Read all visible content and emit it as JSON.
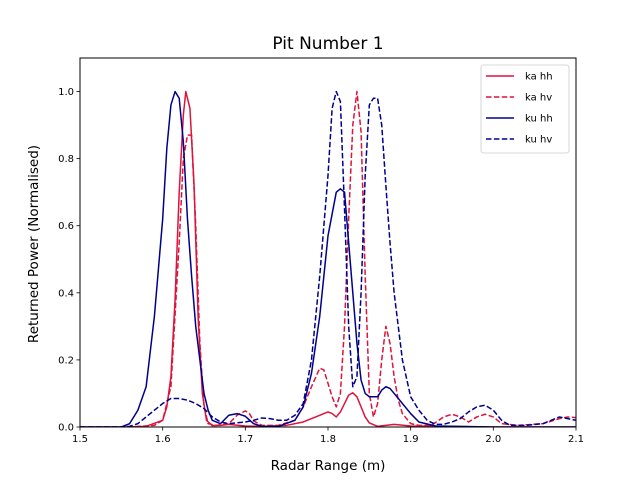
{
  "chart_data": {
    "type": "line",
    "title": "Pit Number 1",
    "xlabel": "Radar Range (m)",
    "ylabel": "Returned Power (Normalised)",
    "xlim": [
      1.5,
      2.1
    ],
    "ylim": [
      0.0,
      1.1
    ],
    "xticks": [
      1.5,
      1.6,
      1.7,
      1.8,
      1.9,
      2.0,
      2.1
    ],
    "xtick_labels": [
      "1.5",
      "1.6",
      "1.7",
      "1.8",
      "1.9",
      "2.0",
      "2.1"
    ],
    "yticks": [
      0.0,
      0.2,
      0.4,
      0.6,
      0.8,
      1.0
    ],
    "ytick_labels": [
      "0.0",
      "0.2",
      "0.4",
      "0.6",
      "0.8",
      "1.0"
    ],
    "legend_position": "top-right",
    "series": [
      {
        "name": "ka hh",
        "color": "#dc143c",
        "dash": "solid",
        "points": [
          [
            1.5,
            0
          ],
          [
            1.55,
            0
          ],
          [
            1.58,
            0.002
          ],
          [
            1.6,
            0.02
          ],
          [
            1.605,
            0.06
          ],
          [
            1.61,
            0.15
          ],
          [
            1.615,
            0.38
          ],
          [
            1.62,
            0.7
          ],
          [
            1.625,
            0.93
          ],
          [
            1.628,
            1.0
          ],
          [
            1.633,
            0.95
          ],
          [
            1.638,
            0.72
          ],
          [
            1.643,
            0.32
          ],
          [
            1.648,
            0.1
          ],
          [
            1.653,
            0.02
          ],
          [
            1.66,
            0.004
          ],
          [
            1.67,
            0.005
          ],
          [
            1.68,
            0.008
          ],
          [
            1.7,
            0.003
          ],
          [
            1.72,
            0.002
          ],
          [
            1.75,
            0.005
          ],
          [
            1.77,
            0.015
          ],
          [
            1.79,
            0.035
          ],
          [
            1.8,
            0.045
          ],
          [
            1.805,
            0.04
          ],
          [
            1.81,
            0.03
          ],
          [
            1.815,
            0.045
          ],
          [
            1.82,
            0.07
          ],
          [
            1.825,
            0.095
          ],
          [
            1.83,
            0.102
          ],
          [
            1.835,
            0.09
          ],
          [
            1.84,
            0.06
          ],
          [
            1.845,
            0.03
          ],
          [
            1.85,
            0.012
          ],
          [
            1.86,
            0.002
          ],
          [
            1.87,
            0.005
          ],
          [
            1.88,
            0.008
          ],
          [
            1.9,
            0.003
          ],
          [
            2.0,
            0.0
          ],
          [
            2.1,
            0.0
          ]
        ]
      },
      {
        "name": "ka hv",
        "color": "#dc143c",
        "dash": "dashed",
        "points": [
          [
            1.5,
            0
          ],
          [
            1.56,
            0
          ],
          [
            1.59,
            0.005
          ],
          [
            1.6,
            0.02
          ],
          [
            1.61,
            0.12
          ],
          [
            1.62,
            0.55
          ],
          [
            1.625,
            0.8
          ],
          [
            1.63,
            0.87
          ],
          [
            1.635,
            0.87
          ],
          [
            1.64,
            0.6
          ],
          [
            1.645,
            0.25
          ],
          [
            1.65,
            0.06
          ],
          [
            1.655,
            0.01
          ],
          [
            1.665,
            0.005
          ],
          [
            1.68,
            0.01
          ],
          [
            1.69,
            0.035
          ],
          [
            1.7,
            0.048
          ],
          [
            1.705,
            0.04
          ],
          [
            1.71,
            0.018
          ],
          [
            1.72,
            0.005
          ],
          [
            1.74,
            0.005
          ],
          [
            1.76,
            0.02
          ],
          [
            1.77,
            0.06
          ],
          [
            1.78,
            0.12
          ],
          [
            1.79,
            0.175
          ],
          [
            1.795,
            0.17
          ],
          [
            1.8,
            0.13
          ],
          [
            1.805,
            0.09
          ],
          [
            1.81,
            0.06
          ],
          [
            1.815,
            0.1
          ],
          [
            1.82,
            0.3
          ],
          [
            1.825,
            0.62
          ],
          [
            1.83,
            0.9
          ],
          [
            1.835,
            1.0
          ],
          [
            1.84,
            0.88
          ],
          [
            1.845,
            0.45
          ],
          [
            1.85,
            0.1
          ],
          [
            1.855,
            0.03
          ],
          [
            1.86,
            0.07
          ],
          [
            1.865,
            0.2
          ],
          [
            1.87,
            0.3
          ],
          [
            1.875,
            0.25
          ],
          [
            1.88,
            0.15
          ],
          [
            1.885,
            0.08
          ],
          [
            1.89,
            0.04
          ],
          [
            1.9,
            0.01
          ],
          [
            1.91,
            0.005
          ],
          [
            1.925,
            0.005
          ],
          [
            1.94,
            0.03
          ],
          [
            1.95,
            0.038
          ],
          [
            1.96,
            0.03
          ],
          [
            1.97,
            0.015
          ],
          [
            1.98,
            0.03
          ],
          [
            1.99,
            0.038
          ],
          [
            2.0,
            0.03
          ],
          [
            2.01,
            0.01
          ],
          [
            2.03,
            0.005
          ],
          [
            2.06,
            0.01
          ],
          [
            2.08,
            0.025
          ],
          [
            2.09,
            0.03
          ],
          [
            2.1,
            0.028
          ]
        ]
      },
      {
        "name": "ku hh",
        "color": "#00008b",
        "dash": "solid",
        "points": [
          [
            1.5,
            0
          ],
          [
            1.55,
            0
          ],
          [
            1.56,
            0.01
          ],
          [
            1.57,
            0.05
          ],
          [
            1.58,
            0.12
          ],
          [
            1.59,
            0.33
          ],
          [
            1.6,
            0.62
          ],
          [
            1.605,
            0.83
          ],
          [
            1.61,
            0.96
          ],
          [
            1.615,
            1.0
          ],
          [
            1.62,
            0.98
          ],
          [
            1.625,
            0.85
          ],
          [
            1.63,
            0.62
          ],
          [
            1.635,
            0.45
          ],
          [
            1.64,
            0.3
          ],
          [
            1.645,
            0.2
          ],
          [
            1.65,
            0.1
          ],
          [
            1.655,
            0.05
          ],
          [
            1.66,
            0.02
          ],
          [
            1.67,
            0.01
          ],
          [
            1.68,
            0.035
          ],
          [
            1.69,
            0.04
          ],
          [
            1.7,
            0.032
          ],
          [
            1.71,
            0.01
          ],
          [
            1.72,
            0.002
          ],
          [
            1.74,
            0.002
          ],
          [
            1.76,
            0.02
          ],
          [
            1.77,
            0.06
          ],
          [
            1.78,
            0.16
          ],
          [
            1.79,
            0.33
          ],
          [
            1.8,
            0.57
          ],
          [
            1.81,
            0.7
          ],
          [
            1.815,
            0.71
          ],
          [
            1.82,
            0.7
          ],
          [
            1.825,
            0.55
          ],
          [
            1.83,
            0.4
          ],
          [
            1.835,
            0.25
          ],
          [
            1.84,
            0.14
          ],
          [
            1.845,
            0.1
          ],
          [
            1.85,
            0.09
          ],
          [
            1.86,
            0.09
          ],
          [
            1.865,
            0.11
          ],
          [
            1.87,
            0.12
          ],
          [
            1.875,
            0.115
          ],
          [
            1.88,
            0.1
          ],
          [
            1.89,
            0.07
          ],
          [
            1.9,
            0.04
          ],
          [
            1.91,
            0.015
          ],
          [
            1.93,
            0.003
          ],
          [
            2.0,
            0.0
          ],
          [
            2.1,
            0.0
          ]
        ]
      },
      {
        "name": "ku hv",
        "color": "#00008b",
        "dash": "dashed",
        "points": [
          [
            1.5,
            0
          ],
          [
            1.55,
            0
          ],
          [
            1.56,
            0.002
          ],
          [
            1.57,
            0.01
          ],
          [
            1.58,
            0.03
          ],
          [
            1.59,
            0.05
          ],
          [
            1.6,
            0.07
          ],
          [
            1.61,
            0.085
          ],
          [
            1.62,
            0.085
          ],
          [
            1.63,
            0.08
          ],
          [
            1.64,
            0.07
          ],
          [
            1.65,
            0.055
          ],
          [
            1.66,
            0.03
          ],
          [
            1.67,
            0.015
          ],
          [
            1.68,
            0.01
          ],
          [
            1.7,
            0.015
          ],
          [
            1.71,
            0.02
          ],
          [
            1.72,
            0.027
          ],
          [
            1.73,
            0.025
          ],
          [
            1.74,
            0.02
          ],
          [
            1.75,
            0.02
          ],
          [
            1.76,
            0.035
          ],
          [
            1.77,
            0.07
          ],
          [
            1.78,
            0.2
          ],
          [
            1.79,
            0.45
          ],
          [
            1.8,
            0.75
          ],
          [
            1.805,
            0.95
          ],
          [
            1.81,
            1.0
          ],
          [
            1.815,
            0.97
          ],
          [
            1.82,
            0.65
          ],
          [
            1.825,
            0.3
          ],
          [
            1.83,
            0.12
          ],
          [
            1.835,
            0.15
          ],
          [
            1.84,
            0.4
          ],
          [
            1.845,
            0.75
          ],
          [
            1.85,
            0.96
          ],
          [
            1.855,
            0.98
          ],
          [
            1.86,
            0.98
          ],
          [
            1.865,
            0.9
          ],
          [
            1.87,
            0.72
          ],
          [
            1.875,
            0.55
          ],
          [
            1.88,
            0.4
          ],
          [
            1.89,
            0.2
          ],
          [
            1.9,
            0.09
          ],
          [
            1.91,
            0.05
          ],
          [
            1.92,
            0.02
          ],
          [
            1.93,
            0.008
          ],
          [
            1.94,
            0.008
          ],
          [
            1.95,
            0.015
          ],
          [
            1.96,
            0.025
          ],
          [
            1.97,
            0.045
          ],
          [
            1.98,
            0.06
          ],
          [
            1.99,
            0.065
          ],
          [
            2.0,
            0.05
          ],
          [
            2.01,
            0.02
          ],
          [
            2.02,
            0.005
          ],
          [
            2.04,
            0.005
          ],
          [
            2.06,
            0.01
          ],
          [
            2.07,
            0.02
          ],
          [
            2.08,
            0.03
          ],
          [
            2.09,
            0.025
          ],
          [
            2.1,
            0.02
          ]
        ]
      }
    ]
  }
}
